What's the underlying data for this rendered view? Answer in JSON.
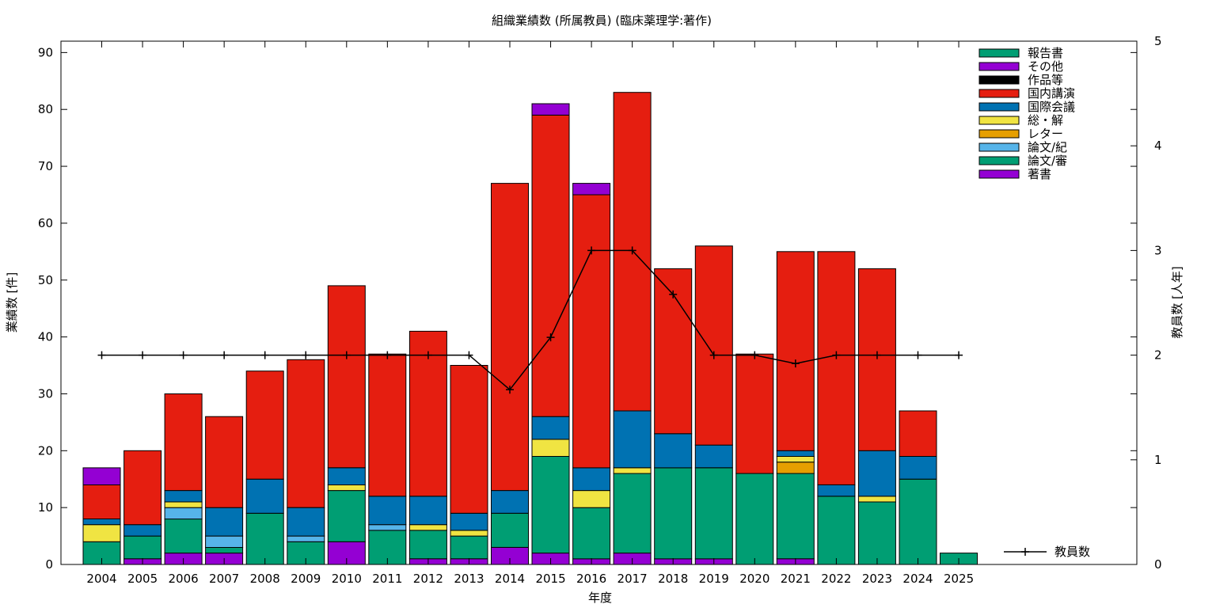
{
  "chart_data": {
    "type": "bar",
    "title": "組織業績数 (所属教員) (臨床薬理学:著作)",
    "xlabel": "年度",
    "ylabel": "業績数 [件]",
    "y2label": "教員数 [人年]",
    "ylim": [
      0,
      92
    ],
    "y2lim": [
      0,
      5
    ],
    "y_ticks": [
      0,
      10,
      20,
      30,
      40,
      50,
      60,
      70,
      80,
      90
    ],
    "y2_ticks": [
      0,
      1,
      2,
      3,
      4,
      5
    ],
    "stacked": true,
    "legend_position": "top-right",
    "categories": [
      "2004",
      "2005",
      "2006",
      "2007",
      "2008",
      "2009",
      "2010",
      "2011",
      "2012",
      "2013",
      "2014",
      "2015",
      "2016",
      "2017",
      "2018",
      "2019",
      "2020",
      "2021",
      "2022",
      "2023",
      "2024",
      "2025"
    ],
    "series": [
      {
        "name": "著書",
        "color": "#9400d3",
        "values": [
          0,
          1,
          2,
          2,
          0,
          0,
          4,
          0,
          1,
          1,
          3,
          2,
          1,
          2,
          1,
          1,
          0,
          1,
          0,
          0,
          0,
          0
        ]
      },
      {
        "name": "論文/審",
        "color": "#009e73",
        "values": [
          4,
          4,
          6,
          1,
          9,
          4,
          9,
          6,
          5,
          4,
          6,
          17,
          9,
          14,
          16,
          16,
          16,
          15,
          12,
          11,
          15,
          2
        ]
      },
      {
        "name": "論文/紀",
        "color": "#56b4e9",
        "values": [
          0,
          0,
          2,
          2,
          0,
          1,
          0,
          1,
          0,
          0,
          0,
          0,
          0,
          0,
          0,
          0,
          0,
          0,
          0,
          0,
          0,
          0
        ]
      },
      {
        "name": "レター",
        "color": "#e69f00",
        "values": [
          0,
          0,
          0,
          0,
          0,
          0,
          0,
          0,
          0,
          0,
          0,
          0,
          0,
          0,
          0,
          0,
          0,
          2,
          0,
          0,
          0,
          0
        ]
      },
      {
        "name": "総・解",
        "color": "#f0e442",
        "values": [
          3,
          0,
          1,
          0,
          0,
          0,
          1,
          0,
          1,
          1,
          0,
          3,
          3,
          1,
          0,
          0,
          0,
          1,
          0,
          1,
          0,
          0
        ]
      },
      {
        "name": "国際会議",
        "color": "#0072b2",
        "values": [
          1,
          2,
          2,
          5,
          6,
          5,
          3,
          5,
          5,
          3,
          4,
          4,
          4,
          10,
          6,
          4,
          0,
          1,
          2,
          8,
          4,
          0
        ]
      },
      {
        "name": "国内講演",
        "color": "#e51e10",
        "values": [
          6,
          13,
          17,
          16,
          19,
          26,
          32,
          25,
          29,
          26,
          54,
          53,
          48,
          56,
          29,
          35,
          21,
          35,
          41,
          32,
          8,
          0
        ]
      },
      {
        "name": "作品等",
        "color": "#000000",
        "values": [
          0,
          0,
          0,
          0,
          0,
          0,
          0,
          0,
          0,
          0,
          0,
          0,
          0,
          0,
          0,
          0,
          0,
          0,
          0,
          0,
          0,
          0
        ]
      },
      {
        "name": "その他",
        "color": "#9400d3",
        "values": [
          3,
          0,
          0,
          0,
          0,
          0,
          0,
          0,
          0,
          0,
          0,
          2,
          2,
          0,
          0,
          0,
          0,
          0,
          0,
          0,
          0,
          0
        ]
      },
      {
        "name": "報告書",
        "color": "#009e73",
        "values": [
          0,
          0,
          0,
          0,
          0,
          0,
          0,
          0,
          0,
          0,
          0,
          0,
          0,
          0,
          0,
          0,
          0,
          0,
          0,
          0,
          0,
          0
        ]
      }
    ],
    "line_series": {
      "name": "教員数",
      "color": "#000000",
      "axis": "right",
      "values": [
        2,
        2,
        2,
        2,
        2,
        2,
        2,
        2,
        2,
        2,
        1.67,
        2.17,
        3,
        3,
        2.58,
        2,
        2,
        1.92,
        2,
        2,
        2,
        2
      ]
    }
  }
}
